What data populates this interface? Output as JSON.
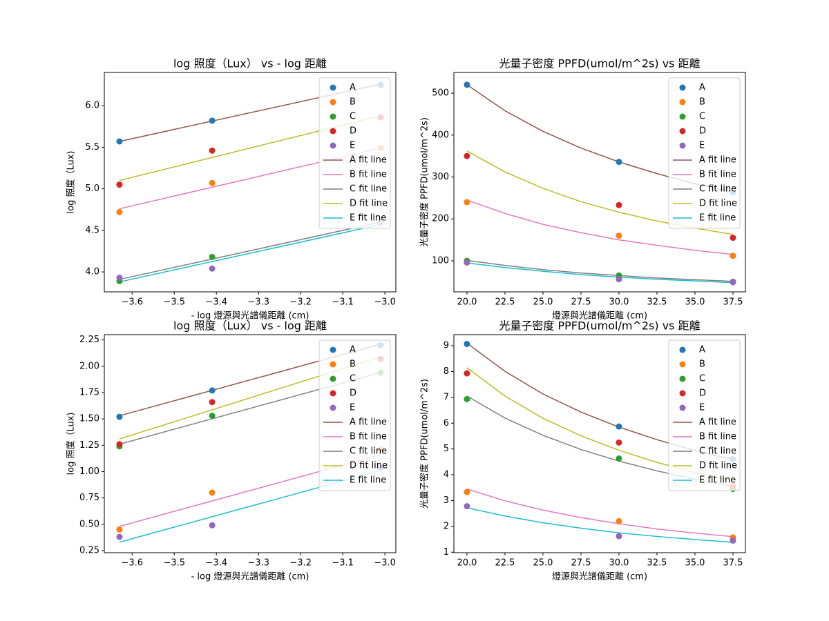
{
  "chart_data": [
    {
      "type": "line",
      "title": "log 照度（Lux） vs - log 距離",
      "x_label": "- log 燈源與光譜儀距離 (cm)",
      "y_label": "log 照度（Lux)",
      "legend": "upper right",
      "xlim": [
        -3.666,
        -2.974
      ],
      "ylim": [
        3.76,
        6.4
      ],
      "xticks": [
        {
          "value": -3.6,
          "label": "−3.6"
        },
        {
          "value": -3.5,
          "label": "−3.5"
        },
        {
          "value": -3.4,
          "label": "−3.4"
        },
        {
          "value": -3.3,
          "label": "−3.3"
        },
        {
          "value": -3.2,
          "label": "−3.2"
        },
        {
          "value": -3.1,
          "label": "−3.1"
        },
        {
          "value": -3.0,
          "label": "−3.0"
        }
      ],
      "yticks": [
        {
          "value": 4.0,
          "label": "4.0"
        },
        4.5,
        {
          "value": 5.0,
          "label": "5.0"
        },
        5.5,
        {
          "value": 6.0,
          "label": "6.0"
        }
      ],
      "series": [
        {
          "name": "A",
          "color": "#1f77b4",
          "kind": "scatter",
          "x": [
            -3.63,
            -3.41,
            -3.01
          ],
          "values": [
            5.57,
            5.82,
            6.25
          ]
        },
        {
          "name": "B",
          "color": "#ff7f0e",
          "kind": "scatter",
          "x": [
            -3.63,
            -3.41,
            -3.01
          ],
          "values": [
            4.72,
            5.07,
            5.49
          ]
        },
        {
          "name": "C",
          "color": "#2ca02c",
          "kind": "scatter",
          "x": [
            -3.63,
            -3.41,
            -3.01
          ],
          "values": [
            3.89,
            4.18,
            4.6
          ]
        },
        {
          "name": "D",
          "color": "#d62728",
          "kind": "scatter",
          "x": [
            -3.63,
            -3.41,
            -3.01
          ],
          "values": [
            5.05,
            5.46,
            5.86
          ]
        },
        {
          "name": "E",
          "color": "#9467bd",
          "kind": "scatter",
          "x": [
            -3.63,
            -3.41,
            -3.01
          ],
          "values": [
            3.93,
            4.04,
            4.59
          ]
        },
        {
          "name": "A fit line",
          "color": "#8c564b",
          "kind": "line",
          "x": [
            -3.63,
            -3.01
          ],
          "values": [
            5.57,
            6.26
          ]
        },
        {
          "name": "B fit line",
          "color": "#e377c2",
          "kind": "line",
          "x": [
            -3.63,
            -3.01
          ],
          "values": [
            4.76,
            5.49
          ]
        },
        {
          "name": "C fit line",
          "color": "#7f7f7f",
          "kind": "line",
          "x": [
            -3.63,
            -3.01
          ],
          "values": [
            3.91,
            4.6
          ]
        },
        {
          "name": "D fit line",
          "color": "#bcbd22",
          "kind": "line",
          "x": [
            -3.63,
            -3.01
          ],
          "values": [
            5.1,
            5.88
          ]
        },
        {
          "name": "E fit line",
          "color": "#17becf",
          "kind": "line",
          "x": [
            -3.63,
            -3.01
          ],
          "values": [
            3.88,
            4.57
          ]
        }
      ]
    },
    {
      "type": "line",
      "title": "光量子密度 PPFD(umol/m^2s) vs 距離",
      "x_label": "燈源與光譜儀距離 (cm)",
      "y_label": "光量子密度 PPFD(umol/m^2s)",
      "legend": "upper right",
      "xlim": [
        19.14,
        38.32
      ],
      "ylim": [
        25.9,
        549.4
      ],
      "xticks": [
        {
          "value": 20,
          "label": "20.0"
        },
        22.5,
        {
          "value": 25,
          "label": "25.0"
        },
        27.5,
        {
          "value": 30,
          "label": "30.0"
        },
        32.5,
        {
          "value": 35,
          "label": "35.0"
        },
        37.5
      ],
      "yticks": [
        100,
        200,
        300,
        400,
        500
      ],
      "series": [
        {
          "name": "A",
          "color": "#1f77b4",
          "kind": "scatter",
          "x": [
            20,
            30,
            37.5
          ],
          "values": [
            520,
            336,
            263
          ]
        },
        {
          "name": "B",
          "color": "#ff7f0e",
          "kind": "scatter",
          "x": [
            20,
            30,
            37.5
          ],
          "values": [
            240,
            160,
            112
          ]
        },
        {
          "name": "C",
          "color": "#2ca02c",
          "kind": "scatter",
          "x": [
            20,
            30,
            37.5
          ],
          "values": [
            100,
            65,
            50
          ]
        },
        {
          "name": "D",
          "color": "#d62728",
          "kind": "scatter",
          "x": [
            20,
            30,
            37.5
          ],
          "values": [
            350,
            233,
            155
          ]
        },
        {
          "name": "E",
          "color": "#9467bd",
          "kind": "scatter",
          "x": [
            20,
            30,
            37.5
          ],
          "values": [
            96,
            56,
            49
          ]
        },
        {
          "name": "A fit line",
          "color": "#8c564b",
          "kind": "line",
          "x": [
            20,
            22.5,
            25,
            27.5,
            30,
            32.5,
            35,
            37.5
          ],
          "values": [
            520,
            458,
            409,
            369,
            336,
            308,
            284,
            264
          ]
        },
        {
          "name": "B fit line",
          "color": "#e377c2",
          "kind": "line",
          "x": [
            20,
            22.5,
            25,
            27.5,
            30,
            32.5,
            35,
            37.5
          ],
          "values": [
            245,
            213,
            187,
            167,
            150,
            137,
            125,
            115
          ]
        },
        {
          "name": "C fit line",
          "color": "#7f7f7f",
          "kind": "line",
          "x": [
            20,
            22.5,
            25,
            27.5,
            30,
            32.5,
            35,
            37.5
          ],
          "values": [
            101,
            89,
            79,
            71,
            65,
            59,
            55,
            51
          ]
        },
        {
          "name": "D fit line",
          "color": "#bcbd22",
          "kind": "line",
          "x": [
            20,
            22.5,
            25,
            27.5,
            30,
            32.5,
            35,
            37.5
          ],
          "values": [
            362,
            312,
            273,
            241,
            216,
            195,
            178,
            163
          ]
        },
        {
          "name": "E fit line",
          "color": "#17becf",
          "kind": "line",
          "x": [
            20,
            22.5,
            25,
            27.5,
            30,
            32.5,
            35,
            37.5
          ],
          "values": [
            95,
            84,
            75,
            67,
            61,
            56,
            52,
            48
          ]
        }
      ]
    },
    {
      "type": "line",
      "title": "log 照度（Lux） vs - log 距離",
      "x_label": "- log 燈源與光譜儀距離 (cm)",
      "y_label": "log 照度（Lux)",
      "legend": "upper right",
      "xlim": [
        -3.666,
        -2.974
      ],
      "ylim": [
        0.23,
        2.3
      ],
      "xticks": [
        {
          "value": -3.6,
          "label": "−3.6"
        },
        {
          "value": -3.5,
          "label": "−3.5"
        },
        {
          "value": -3.4,
          "label": "−3.4"
        },
        {
          "value": -3.3,
          "label": "−3.3"
        },
        {
          "value": -3.2,
          "label": "−3.2"
        },
        {
          "value": -3.1,
          "label": "−3.1"
        },
        {
          "value": -3.0,
          "label": "−3.0"
        }
      ],
      "yticks": [
        0.25,
        {
          "value": 0.5,
          "label": "0.50"
        },
        0.75,
        {
          "value": 1.0,
          "label": "1.00"
        },
        1.25,
        {
          "value": 1.5,
          "label": "1.50"
        },
        1.75,
        {
          "value": 2.0,
          "label": "2.00"
        },
        2.25
      ],
      "series": [
        {
          "name": "A",
          "color": "#1f77b4",
          "kind": "scatter",
          "x": [
            -3.63,
            -3.41,
            -3.01
          ],
          "values": [
            1.52,
            1.77,
            2.2
          ]
        },
        {
          "name": "B",
          "color": "#ff7f0e",
          "kind": "scatter",
          "x": [
            -3.63,
            -3.41,
            -3.01
          ],
          "values": [
            0.45,
            0.8,
            1.21
          ]
        },
        {
          "name": "C",
          "color": "#2ca02c",
          "kind": "scatter",
          "x": [
            -3.63,
            -3.41,
            -3.01
          ],
          "values": [
            1.24,
            1.53,
            1.94
          ]
        },
        {
          "name": "D",
          "color": "#d62728",
          "kind": "scatter",
          "x": [
            -3.63,
            -3.41,
            -3.01
          ],
          "values": [
            1.26,
            1.66,
            2.07
          ]
        },
        {
          "name": "E",
          "color": "#9467bd",
          "kind": "scatter",
          "x": [
            -3.63,
            -3.41,
            -3.01
          ],
          "values": [
            0.38,
            0.49,
            1.03
          ]
        },
        {
          "name": "A fit line",
          "color": "#8c564b",
          "kind": "line",
          "x": [
            -3.63,
            -3.01
          ],
          "values": [
            1.53,
            2.21
          ]
        },
        {
          "name": "B fit line",
          "color": "#e377c2",
          "kind": "line",
          "x": [
            -3.63,
            -3.01
          ],
          "values": [
            0.48,
            1.16
          ]
        },
        {
          "name": "C fit line",
          "color": "#7f7f7f",
          "kind": "line",
          "x": [
            -3.63,
            -3.01
          ],
          "values": [
            1.26,
            1.94
          ]
        },
        {
          "name": "D fit line",
          "color": "#bcbd22",
          "kind": "line",
          "x": [
            -3.63,
            -3.01
          ],
          "values": [
            1.31,
            2.09
          ]
        },
        {
          "name": "E fit line",
          "color": "#17becf",
          "kind": "line",
          "x": [
            -3.63,
            -3.01
          ],
          "values": [
            0.33,
            1.01
          ]
        }
      ]
    },
    {
      "type": "line",
      "title": "光量子密度 PPFD(umol/m^2s) vs 距離",
      "x_label": "燈源與光譜儀距離 (cm)",
      "y_label": "光量子密度 PPFD(umol/m^2s)",
      "legend": "upper right",
      "xlim": [
        19.14,
        38.32
      ],
      "ylim": [
        0.98,
        9.43
      ],
      "xticks": [
        {
          "value": 20,
          "label": "20.0"
        },
        22.5,
        {
          "value": 25,
          "label": "25.0"
        },
        27.5,
        {
          "value": 30,
          "label": "30.0"
        },
        32.5,
        {
          "value": 35,
          "label": "35.0"
        },
        37.5
      ],
      "yticks": [
        1,
        2,
        3,
        4,
        5,
        6,
        7,
        8,
        9
      ],
      "series": [
        {
          "name": "A",
          "color": "#1f77b4",
          "kind": "scatter",
          "x": [
            20,
            30,
            37.5
          ],
          "values": [
            9.07,
            5.87,
            4.6
          ]
        },
        {
          "name": "B",
          "color": "#ff7f0e",
          "kind": "scatter",
          "x": [
            20,
            30,
            37.5
          ],
          "values": [
            3.33,
            2.2,
            1.57
          ]
        },
        {
          "name": "C",
          "color": "#2ca02c",
          "kind": "scatter",
          "x": [
            20,
            30,
            37.5
          ],
          "values": [
            6.93,
            4.63,
            3.45
          ]
        },
        {
          "name": "D",
          "color": "#d62728",
          "kind": "scatter",
          "x": [
            20,
            30,
            37.5
          ],
          "values": [
            7.93,
            5.25,
            3.55
          ]
        },
        {
          "name": "E",
          "color": "#9467bd",
          "kind": "scatter",
          "x": [
            20,
            30,
            37.5
          ],
          "values": [
            2.78,
            1.62,
            1.45
          ]
        },
        {
          "name": "A fit line",
          "color": "#8c564b",
          "kind": "line",
          "x": [
            20,
            22.5,
            25,
            27.5,
            30,
            32.5,
            35,
            37.5
          ],
          "values": [
            9.1,
            8.01,
            7.13,
            6.43,
            5.85,
            5.36,
            4.94,
            4.59
          ]
        },
        {
          "name": "B fit line",
          "color": "#e377c2",
          "kind": "line",
          "x": [
            20,
            22.5,
            25,
            27.5,
            30,
            32.5,
            35,
            37.5
          ],
          "values": [
            3.45,
            2.99,
            2.63,
            2.34,
            2.1,
            1.9,
            1.74,
            1.6
          ]
        },
        {
          "name": "C fit line",
          "color": "#7f7f7f",
          "kind": "line",
          "x": [
            20,
            22.5,
            25,
            27.5,
            30,
            32.5,
            35,
            37.5
          ],
          "values": [
            7.05,
            6.2,
            5.53,
            4.98,
            4.53,
            4.15,
            3.83,
            3.55
          ]
        },
        {
          "name": "D fit line",
          "color": "#bcbd22",
          "kind": "line",
          "x": [
            20,
            22.5,
            25,
            27.5,
            30,
            32.5,
            35,
            37.5
          ],
          "values": [
            8.15,
            7.05,
            6.19,
            5.51,
            4.95,
            4.48,
            4.09,
            3.77
          ]
        },
        {
          "name": "E fit line",
          "color": "#17becf",
          "kind": "line",
          "x": [
            20,
            22.5,
            25,
            27.5,
            30,
            32.5,
            35,
            37.5
          ],
          "values": [
            2.72,
            2.4,
            2.14,
            1.93,
            1.75,
            1.61,
            1.49,
            1.38
          ]
        }
      ]
    }
  ]
}
